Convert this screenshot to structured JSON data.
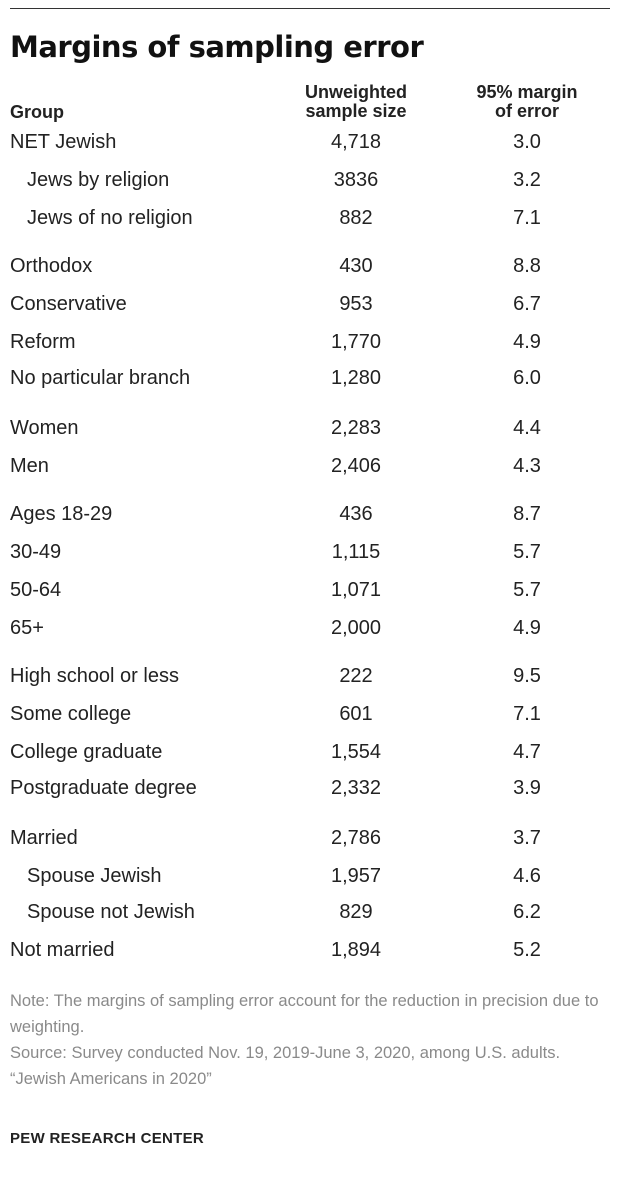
{
  "title": "Margins of sampling error",
  "headers": {
    "group": "Group",
    "sample_line1": "Unweighted",
    "sample_line2": "sample size",
    "margin_line1": "95% margin",
    "margin_line2": "of error"
  },
  "rows": [
    {
      "group": "NET Jewish",
      "n": "4,718",
      "moe": "3.0"
    },
    {
      "group": "Jews by religion",
      "n": "3836",
      "moe": "3.2"
    },
    {
      "group": "Jews of no religion",
      "n": "882",
      "moe": "7.1"
    },
    {
      "group": "Orthodox",
      "n": "430",
      "moe": "8.8"
    },
    {
      "group": "Conservative",
      "n": "953",
      "moe": "6.7"
    },
    {
      "group": "Reform",
      "n": "1,770",
      "moe": "4.9"
    },
    {
      "group": "No particular branch",
      "n": "1,280",
      "moe": "6.0"
    },
    {
      "group": "Women",
      "n": "2,283",
      "moe": "4.4"
    },
    {
      "group": "Men",
      "n": "2,406",
      "moe": "4.3"
    },
    {
      "group": "Ages 18-29",
      "n": "436",
      "moe": "8.7"
    },
    {
      "group": "30-49",
      "n": "1,115",
      "moe": "5.7"
    },
    {
      "group": "50-64",
      "n": "1,071",
      "moe": "5.7"
    },
    {
      "group": "65+",
      "n": "2,000",
      "moe": "4.9"
    },
    {
      "group": "High school or less",
      "n": "222",
      "moe": "9.5"
    },
    {
      "group": "Some college",
      "n": "601",
      "moe": "7.1"
    },
    {
      "group": "College graduate",
      "n": "1,554",
      "moe": "4.7"
    },
    {
      "group": "Postgraduate degree",
      "n": "2,332",
      "moe": "3.9"
    },
    {
      "group": "Married",
      "n": "2,786",
      "moe": "3.7"
    },
    {
      "group": "Spouse Jewish",
      "n": "1,957",
      "moe": "4.6"
    },
    {
      "group": "Spouse not Jewish",
      "n": "829",
      "moe": "6.2"
    },
    {
      "group": "Not married",
      "n": "1,894",
      "moe": "5.2"
    }
  ],
  "notes": {
    "note": "Note: The margins of sampling error account for the reduction in precision due to weighting.",
    "source": "Source: Survey conducted Nov. 19, 2019-June 3, 2020, among U.S. adults.",
    "report": "“Jewish Americans in 2020”"
  },
  "brand": "PEW RESEARCH CENTER"
}
